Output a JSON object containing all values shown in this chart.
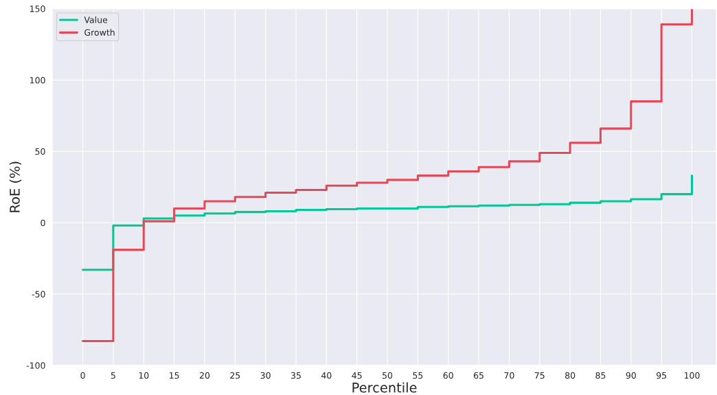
{
  "chart_data": {
    "type": "step",
    "xlabel": "Percentile",
    "ylabel": "RoE (%)",
    "x": [
      0,
      5,
      10,
      15,
      20,
      25,
      30,
      35,
      40,
      45,
      50,
      55,
      60,
      65,
      70,
      75,
      80,
      85,
      90,
      95,
      100
    ],
    "series": [
      {
        "name": "Value",
        "color": "#00c896",
        "values": [
          -33,
          -2,
          3,
          5,
          6.5,
          7.5,
          8,
          9,
          9.5,
          10,
          10,
          11,
          11.5,
          12,
          12.5,
          13,
          14,
          15,
          16.5,
          20,
          33
        ]
      },
      {
        "name": "Growth",
        "color": "#e24a5a",
        "values": [
          -83,
          -19,
          1,
          10,
          15,
          18,
          21,
          23,
          26,
          28,
          30,
          33,
          36,
          39,
          43,
          49,
          56,
          66,
          85,
          139,
          150
        ]
      }
    ],
    "xlim": [
      -5,
      104
    ],
    "xticks": [
      0,
      5,
      10,
      15,
      20,
      25,
      30,
      35,
      40,
      45,
      50,
      55,
      60,
      65,
      70,
      75,
      80,
      85,
      90,
      95,
      100
    ],
    "ylim": [
      -100,
      150
    ],
    "yticks": [
      -100,
      -50,
      0,
      50,
      100,
      150
    ],
    "grid": true,
    "legend": "top left"
  }
}
